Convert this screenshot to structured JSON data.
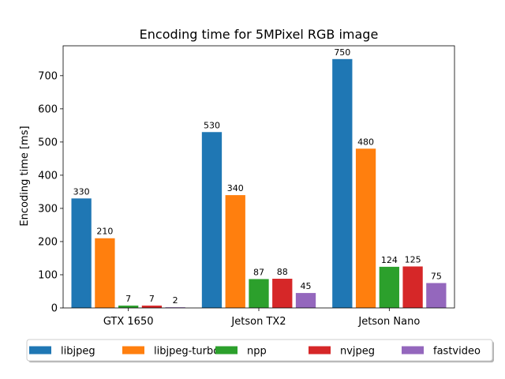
{
  "chart_data": {
    "type": "bar",
    "title": "Encoding time for 5MPixel RGB image",
    "xlabel": "",
    "ylabel": "Encoding time [ms]",
    "ylim": [
      0,
      790
    ],
    "yticks": [
      0,
      100,
      200,
      300,
      400,
      500,
      600,
      700
    ],
    "categories": [
      "GTX 1650",
      "Jetson TX2",
      "Jetson Nano"
    ],
    "series": [
      {
        "name": "libjpeg",
        "color": "#1f77b4",
        "values": [
          330,
          530,
          750
        ]
      },
      {
        "name": "libjpeg-turbo",
        "color": "#ff7f0e",
        "values": [
          210,
          340,
          480
        ]
      },
      {
        "name": "npp",
        "color": "#2ca02c",
        "values": [
          7,
          87,
          124
        ]
      },
      {
        "name": "nvjpeg",
        "color": "#d62728",
        "values": [
          7,
          88,
          125
        ]
      },
      {
        "name": "fastvideo",
        "color": "#9467bd",
        "values": [
          2,
          45,
          75
        ]
      }
    ],
    "grid": false,
    "legend_position": "bottom"
  }
}
